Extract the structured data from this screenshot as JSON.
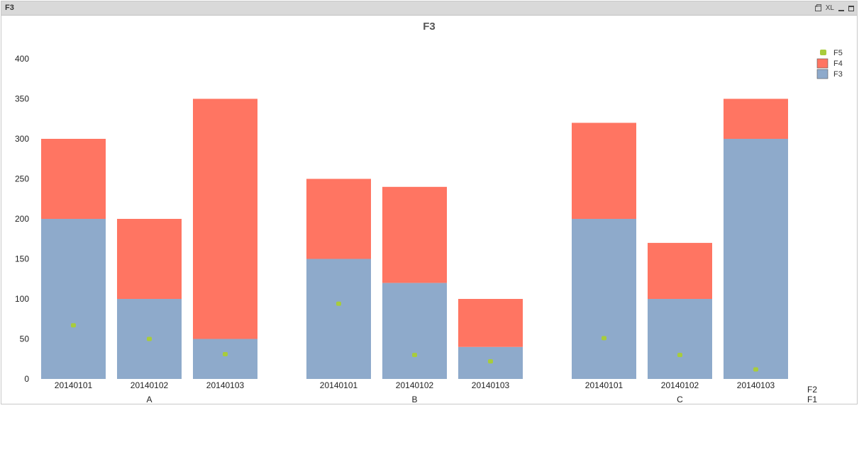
{
  "window": {
    "title": "F3",
    "controls": [
      "print-icon",
      "XL",
      "minimize-icon",
      "maximize-icon"
    ],
    "xl_label": "XL"
  },
  "chart_data": {
    "type": "bar",
    "stacked": true,
    "title": "F3",
    "ylim": [
      0,
      400
    ],
    "yticks": [
      "0",
      "50",
      "100",
      "150",
      "200",
      "250",
      "300",
      "350",
      "400"
    ],
    "dimension_labels": {
      "inner": "F2",
      "outer": "F1"
    },
    "groups": [
      {
        "name": "A",
        "categories": [
          "20140101",
          "20140102",
          "20140103"
        ]
      },
      {
        "name": "B",
        "categories": [
          "20140101",
          "20140102",
          "20140103"
        ]
      },
      {
        "name": "C",
        "categories": [
          "20140101",
          "20140102",
          "20140103"
        ]
      }
    ],
    "series": [
      {
        "name": "F3",
        "kind": "bar",
        "color": "#8eaacb",
        "values": [
          [
            200,
            100,
            50
          ],
          [
            150,
            120,
            40
          ],
          [
            200,
            100,
            300
          ]
        ]
      },
      {
        "name": "F4",
        "kind": "bar",
        "color": "#ff7562",
        "values": [
          [
            100,
            100,
            300
          ],
          [
            100,
            120,
            60
          ],
          [
            120,
            70,
            50
          ]
        ]
      },
      {
        "name": "F5",
        "kind": "symbol",
        "color": "#a8cc3c",
        "values": [
          [
            67,
            50,
            31
          ],
          [
            94,
            30,
            22
          ],
          [
            51,
            30,
            12
          ]
        ]
      }
    ],
    "legend": [
      "F5",
      "F4",
      "F3"
    ],
    "legend_position": "top-right",
    "grid": false
  }
}
